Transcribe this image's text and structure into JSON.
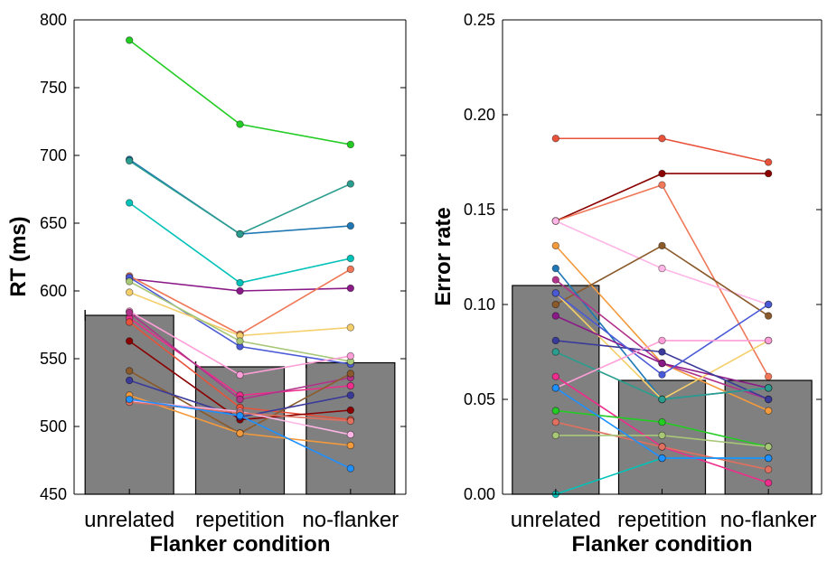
{
  "chart_data": [
    {
      "type": "bar",
      "overlay": "line",
      "categories": [
        "unrelated",
        "repetition",
        "no-flanker"
      ],
      "xlabel": "Flanker condition",
      "ylabel": "RT (ms)",
      "ylim": [
        450,
        800
      ],
      "yticks": [
        450,
        500,
        550,
        600,
        650,
        700,
        750,
        800
      ],
      "yticklabels": [
        "450",
        "500",
        "550",
        "600",
        "650",
        "700",
        "750",
        "800"
      ],
      "bar_color": "#808080",
      "bars": [
        582,
        544,
        547
      ],
      "series": [
        {
          "color": "#22cc22",
          "values": [
            785,
            723,
            708
          ]
        },
        {
          "color": "#1f77b4",
          "values": [
            697,
            642,
            648
          ]
        },
        {
          "color": "#2a9d8f",
          "values": [
            696,
            642,
            679
          ]
        },
        {
          "color": "#00c2b8",
          "values": [
            665,
            606,
            624
          ]
        },
        {
          "color": "#8b1a89",
          "values": [
            609,
            600,
            602
          ]
        },
        {
          "color": "#f07858",
          "values": [
            611,
            568,
            616
          ]
        },
        {
          "color": "#4a5ad6",
          "values": [
            610,
            559,
            546
          ]
        },
        {
          "color": "#f5cf6b",
          "values": [
            599,
            567,
            573
          ]
        },
        {
          "color": "#a8c878",
          "values": [
            607,
            563,
            548
          ]
        },
        {
          "color": "#ff9ed8",
          "values": [
            585,
            538,
            552
          ]
        },
        {
          "color": "#ee2d8c",
          "values": [
            580,
            523,
            530
          ]
        },
        {
          "color": "#b2338a",
          "values": [
            584,
            520,
            536
          ]
        },
        {
          "color": "#e8523a",
          "values": [
            577,
            514,
            505
          ]
        },
        {
          "color": "#8b0000",
          "values": [
            563,
            505,
            512
          ]
        },
        {
          "color": "#8b5a2b",
          "values": [
            541,
            495,
            539
          ]
        },
        {
          "color": "#3a3a9a",
          "values": [
            534,
            507,
            523
          ]
        },
        {
          "color": "#f39a3c",
          "values": [
            523,
            495,
            486
          ]
        },
        {
          "color": "#ffb6e6",
          "values": [
            519,
            511,
            494
          ]
        },
        {
          "color": "#e07060",
          "values": [
            518,
            510,
            504
          ]
        },
        {
          "color": "#1e90ff",
          "values": [
            520,
            508,
            469
          ]
        }
      ]
    },
    {
      "type": "bar",
      "overlay": "line",
      "categories": [
        "unrelated",
        "repetition",
        "no-flanker"
      ],
      "xlabel": "Flanker condition",
      "ylabel": "Error rate",
      "ylim": [
        0,
        0.25
      ],
      "yticks": [
        0,
        0.05,
        0.1,
        0.15,
        0.2,
        0.25
      ],
      "yticklabels": [
        "0.00",
        "0.05",
        "0.10",
        "0.15",
        "0.20",
        "0.25"
      ],
      "bar_color": "#808080",
      "bars": [
        0.11,
        0.06,
        0.06
      ],
      "series": [
        {
          "color": "#e8523a",
          "values": [
            0.1875,
            0.1875,
            0.175
          ]
        },
        {
          "color": "#8b0000",
          "values": [
            0.144,
            0.169,
            0.169
          ]
        },
        {
          "color": "#f07858",
          "values": [
            0.144,
            0.163,
            0.062
          ]
        },
        {
          "color": "#ffb6e6",
          "values": [
            0.144,
            0.119,
            0.1
          ]
        },
        {
          "color": "#f39a3c",
          "values": [
            0.131,
            0.069,
            0.044
          ]
        },
        {
          "color": "#8b5a2b",
          "values": [
            0.1,
            0.131,
            0.094
          ]
        },
        {
          "color": "#1f77b4",
          "values": [
            0.119,
            0.05,
            0.056
          ]
        },
        {
          "color": "#b2338a",
          "values": [
            0.113,
            0.069,
            0.05
          ]
        },
        {
          "color": "#f5cf6b",
          "values": [
            0.106,
            0.05,
            0.081
          ]
        },
        {
          "color": "#8b1a89",
          "values": [
            0.094,
            0.069,
            0.056
          ]
        },
        {
          "color": "#3a3a9a",
          "values": [
            0.081,
            0.075,
            0.05
          ]
        },
        {
          "color": "#4a5ad6",
          "values": [
            0.106,
            0.063,
            0.1
          ]
        },
        {
          "color": "#2a9d8f",
          "values": [
            0.075,
            0.05,
            0.056
          ]
        },
        {
          "color": "#ff9ed8",
          "values": [
            0.056,
            0.081,
            0.081
          ]
        },
        {
          "color": "#ee2d8c",
          "values": [
            0.062,
            0.025,
            0.006
          ]
        },
        {
          "color": "#e07060",
          "values": [
            0.038,
            0.025,
            0.013
          ]
        },
        {
          "color": "#22cc22",
          "values": [
            0.044,
            0.038,
            0.025
          ]
        },
        {
          "color": "#a8c878",
          "values": [
            0.031,
            0.031,
            0.025
          ]
        },
        {
          "color": "#00c2b8",
          "values": [
            0.0,
            0.019,
            0.019
          ]
        },
        {
          "color": "#1e90ff",
          "values": [
            0.056,
            0.019,
            0.019
          ]
        }
      ]
    }
  ]
}
